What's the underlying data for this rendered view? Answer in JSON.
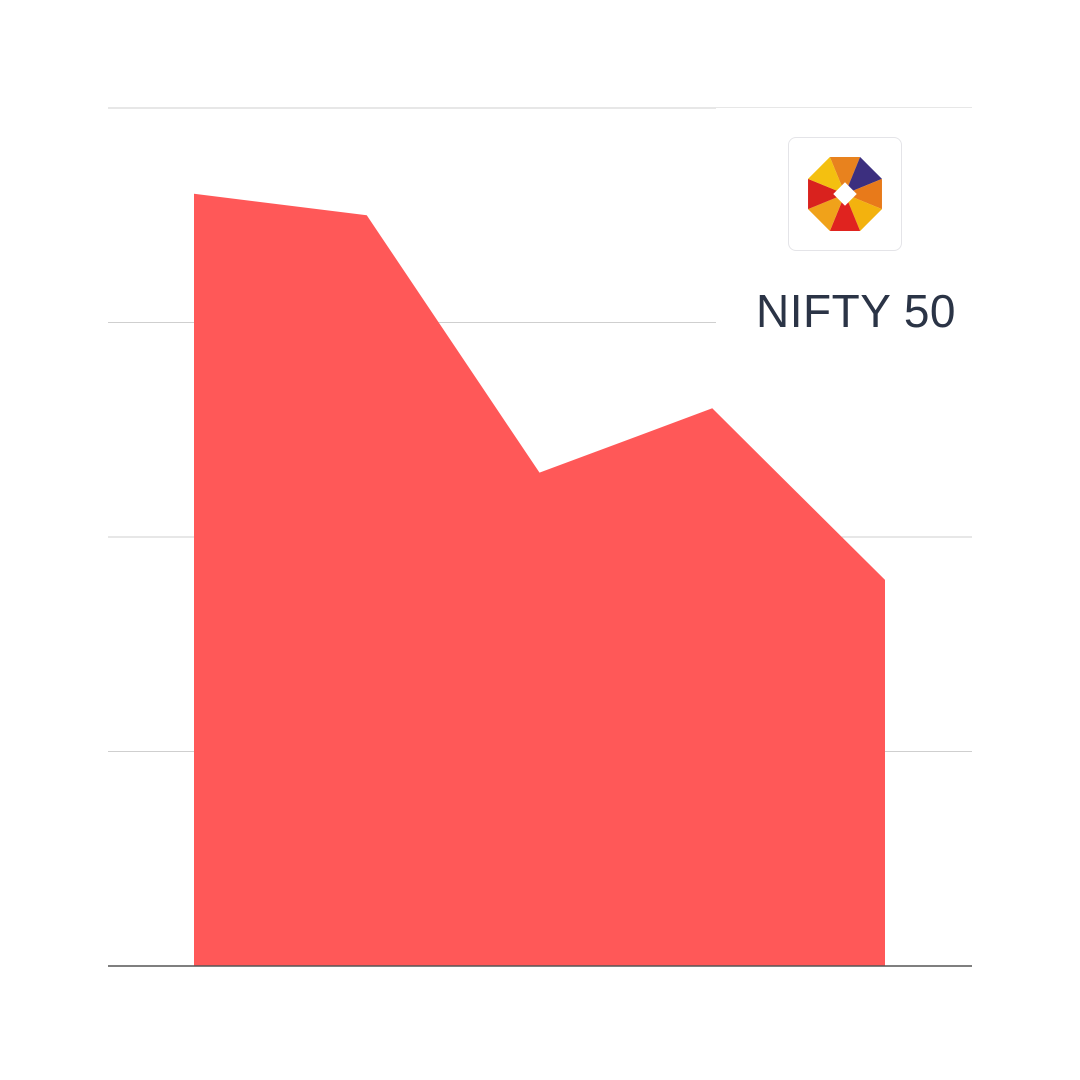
{
  "chart_data": {
    "type": "area",
    "x": [
      1,
      2,
      3,
      4,
      5
    ],
    "values": [
      3.6,
      3.5,
      2.3,
      2.6,
      1.8
    ],
    "ylim": [
      0,
      4
    ],
    "yticks": [
      0,
      1,
      2,
      3,
      4
    ],
    "grid": true,
    "colors": {
      "fill": "#ff5858",
      "grid": "#cfcfcf",
      "axis": "#555555"
    }
  },
  "brand": {
    "name": "NIFTY 50",
    "logo_icon": "nifty-octagon-logo"
  }
}
